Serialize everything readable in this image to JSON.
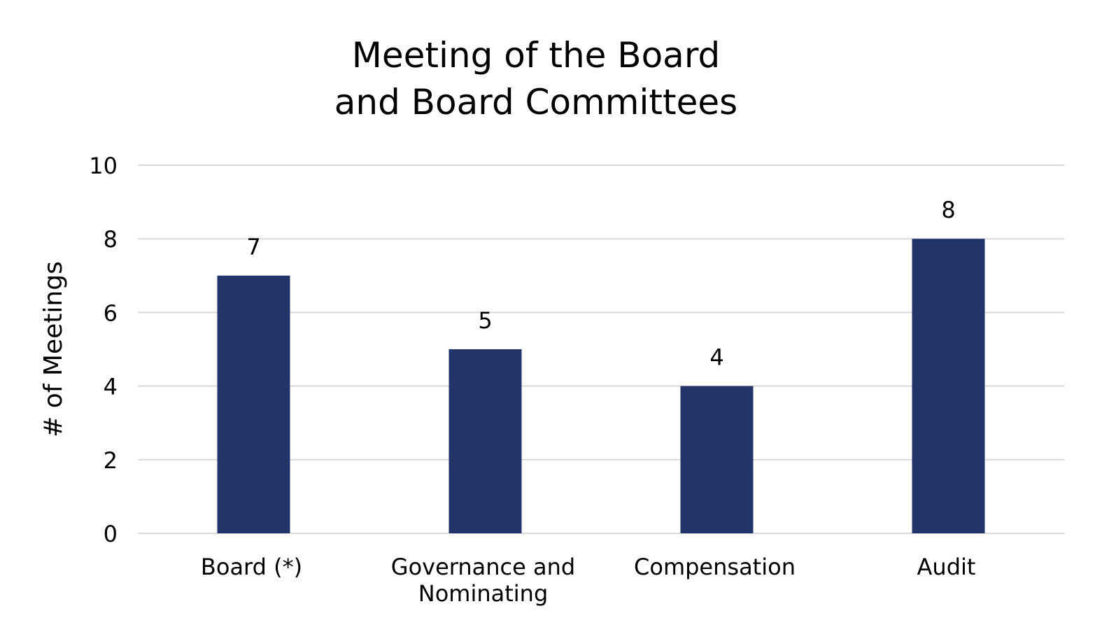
{
  "chart_data": {
    "type": "bar",
    "title": [
      "Meeting of the Board",
      "and Board Committees"
    ],
    "xlabel": "",
    "ylabel": "# of Meetings",
    "categories": [
      [
        "Board (*)"
      ],
      [
        "Governance and",
        "Nominating"
      ],
      [
        "Compensation"
      ],
      [
        "Audit"
      ]
    ],
    "values": [
      7,
      5,
      4,
      8
    ],
    "ylim": [
      0,
      10
    ],
    "yticks": [
      0,
      2,
      4,
      6,
      8,
      10
    ],
    "grid": true,
    "legend": "none",
    "data_labels": true,
    "colors": {
      "bar": "#22356a",
      "grid": "#d9d9d9"
    }
  }
}
